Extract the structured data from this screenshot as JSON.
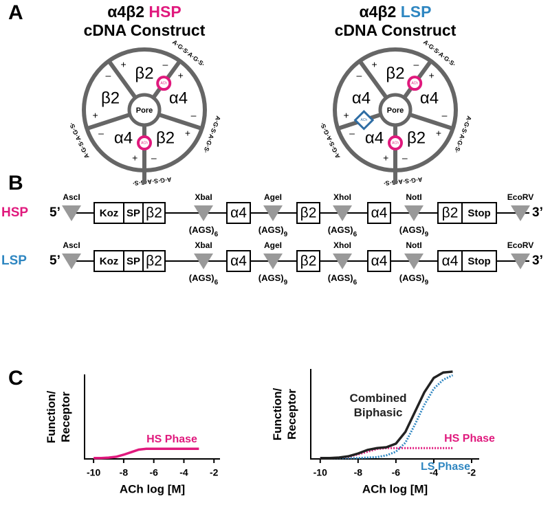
{
  "panel_a": {
    "label": "A",
    "plus": "+",
    "minus": "–",
    "pore": "Pore",
    "ach": "ACh",
    "linker": "A·G·S·A·G·S·",
    "constructs": [
      {
        "title_prefix": "α4β2",
        "title_name": "HSP",
        "title_color": "#e0197d",
        "subtitle": "cDNA Construct",
        "subunits": [
          "β2",
          "α4",
          "β2",
          "α4",
          "β2"
        ]
      },
      {
        "title_prefix": "α4β2",
        "title_name": "LSP",
        "title_color": "#2e86c1",
        "subtitle": "cDNA Construct",
        "subunits": [
          "β2",
          "α4",
          "β2",
          "α4",
          "α4"
        ]
      }
    ]
  },
  "panel_b": {
    "label": "B",
    "five": "5’",
    "three": "3’",
    "rows": [
      {
        "name": "HSP",
        "color": "#e0197d",
        "sites": [
          "AscI",
          "XbaI",
          "AgeI",
          "XhoI",
          "NotI",
          "EcoRV"
        ],
        "linkers": [
          [
            "(AGS)",
            "6"
          ],
          [
            "(AGS)",
            "9"
          ],
          [
            "(AGS)",
            "6"
          ],
          [
            "(AGS)",
            "9"
          ]
        ],
        "boxes": [
          "Koz",
          "SP",
          "β2",
          "α4",
          "β2",
          "α4",
          "β2",
          "Stop"
        ]
      },
      {
        "name": "LSP",
        "color": "#2e86c1",
        "sites": [
          "AscI",
          "XbaI",
          "AgeI",
          "XhoI",
          "NotI",
          "EcoRV"
        ],
        "linkers": [
          [
            "(AGS)",
            "6"
          ],
          [
            "(AGS)",
            "9"
          ],
          [
            "(AGS)",
            "6"
          ],
          [
            "(AGS)",
            "9"
          ]
        ],
        "boxes": [
          "Koz",
          "SP",
          "β2",
          "α4",
          "β2",
          "α4",
          "α4",
          "Stop"
        ]
      }
    ]
  },
  "panel_c": {
    "label": "C"
  },
  "chart_data": [
    {
      "type": "line",
      "ylabel": "Function/ Receptor",
      "xlabel": "ACh log [M]",
      "xlim": [
        -10.6,
        -1.6
      ],
      "xticks": [
        -10,
        -8,
        -6,
        -4,
        -2
      ],
      "ylim": [
        0,
        1
      ],
      "x": [
        -10,
        -9.5,
        -9,
        -8.5,
        -8,
        -7.5,
        -7,
        -6.5,
        -6,
        -5.5,
        -5,
        -4.5,
        -4,
        -3.5,
        -3
      ],
      "series": [
        {
          "name": "HS Phase",
          "color": "#e0197d",
          "style": "solid",
          "values": [
            0.01,
            0.01,
            0.015,
            0.025,
            0.05,
            0.08,
            0.11,
            0.12,
            0.12,
            0.12,
            0.12,
            0.12,
            0.12,
            0.12,
            0.12
          ]
        }
      ]
    },
    {
      "type": "line",
      "ylabel": "Function/ Receptor",
      "xlabel": "ACh log [M]",
      "xlim": [
        -10.5,
        -1.6
      ],
      "xticks": [
        -10,
        -8,
        -6,
        -4,
        -2
      ],
      "ylim": [
        0,
        1
      ],
      "x": [
        -10,
        -9.5,
        -9,
        -8.5,
        -8,
        -7.5,
        -7,
        -6.5,
        -6,
        -5.5,
        -5,
        -4.5,
        -4,
        -3.5,
        -3
      ],
      "series": [
        {
          "name": "Combined Biphasic",
          "color": "#222222",
          "style": "solid",
          "values": [
            0.01,
            0.01,
            0.015,
            0.03,
            0.06,
            0.1,
            0.12,
            0.13,
            0.17,
            0.3,
            0.52,
            0.74,
            0.9,
            0.96,
            0.97
          ]
        },
        {
          "name": "HS Phase",
          "color": "#e0197d",
          "style": "dotted",
          "values": [
            0.01,
            0.01,
            0.015,
            0.025,
            0.05,
            0.08,
            0.11,
            0.12,
            0.12,
            0.12,
            0.12,
            0.12,
            0.12,
            0.12,
            0.12
          ]
        },
        {
          "name": "LS Phase",
          "color": "#2e86c1",
          "style": "dotted",
          "values": [
            0.01,
            0.01,
            0.01,
            0.01,
            0.01,
            0.015,
            0.02,
            0.04,
            0.08,
            0.18,
            0.38,
            0.6,
            0.78,
            0.88,
            0.93
          ]
        }
      ]
    }
  ]
}
